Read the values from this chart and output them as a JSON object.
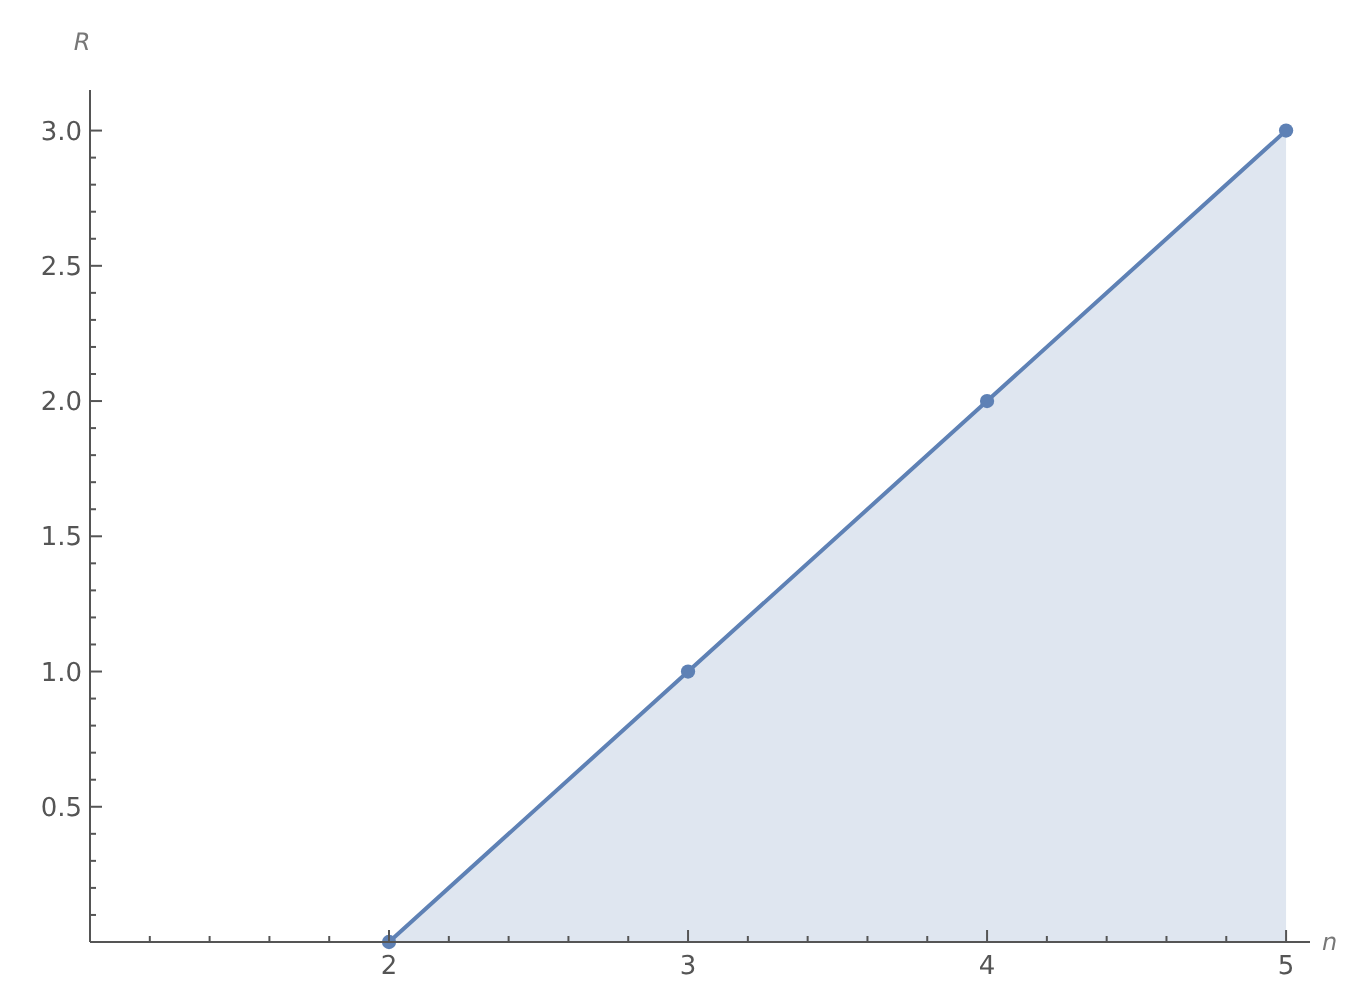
{
  "chart_data": {
    "type": "area",
    "xlabel": "n",
    "ylabel": "R",
    "x": [
      2,
      3,
      4,
      5
    ],
    "series": [
      {
        "color": "#5e81b5",
        "values": [
          0,
          1,
          2,
          3
        ]
      }
    ],
    "xlim": [
      1,
      5.08
    ],
    "ylim": [
      0,
      3.15
    ],
    "marker": "circle",
    "grid": false,
    "xticks": [
      {
        "value": 1.2,
        "label": null
      },
      {
        "value": 1.4,
        "label": null
      },
      {
        "value": 1.6,
        "label": null
      },
      {
        "value": 1.8,
        "label": null
      },
      2,
      {
        "value": 2.2,
        "label": null
      },
      {
        "value": 2.4,
        "label": null
      },
      {
        "value": 2.6,
        "label": null
      },
      {
        "value": 2.8,
        "label": null
      },
      3,
      {
        "value": 3.2,
        "label": null
      },
      {
        "value": 3.4,
        "label": null
      },
      {
        "value": 3.6,
        "label": null
      },
      {
        "value": 3.8,
        "label": null
      },
      4,
      {
        "value": 4.2,
        "label": null
      },
      {
        "value": 4.4,
        "label": null
      },
      {
        "value": 4.6,
        "label": null
      },
      {
        "value": 4.8,
        "label": null
      },
      5
    ],
    "yticks": [
      {
        "value": 0.1,
        "label": null
      },
      {
        "value": 0.2,
        "label": null
      },
      {
        "value": 0.3,
        "label": null
      },
      {
        "value": 0.4,
        "label": null
      },
      {
        "value": 0.5,
        "label": "0.5"
      },
      {
        "value": 0.6,
        "label": null
      },
      {
        "value": 0.7,
        "label": null
      },
      {
        "value": 0.8,
        "label": null
      },
      {
        "value": 0.9,
        "label": null
      },
      {
        "value": 1,
        "label": "1.0"
      },
      {
        "value": 1.1,
        "label": null
      },
      {
        "value": 1.2,
        "label": null
      },
      {
        "value": 1.3,
        "label": null
      },
      {
        "value": 1.4,
        "label": null
      },
      {
        "value": 1.5,
        "label": "1.5"
      },
      {
        "value": 1.6,
        "label": null
      },
      {
        "value": 1.7,
        "label": null
      },
      {
        "value": 1.8,
        "label": null
      },
      {
        "value": 1.9,
        "label": null
      },
      {
        "value": 2,
        "label": "2.0"
      },
      {
        "value": 2.1,
        "label": null
      },
      {
        "value": 2.2,
        "label": null
      },
      {
        "value": 2.3,
        "label": null
      },
      {
        "value": 2.4,
        "label": null
      },
      {
        "value": 2.5,
        "label": "2.5"
      },
      {
        "value": 2.6,
        "label": null
      },
      {
        "value": 2.7,
        "label": null
      },
      {
        "value": 2.8,
        "label": null
      },
      {
        "value": 2.9,
        "label": null
      },
      {
        "value": 3,
        "label": "3.0"
      }
    ]
  }
}
